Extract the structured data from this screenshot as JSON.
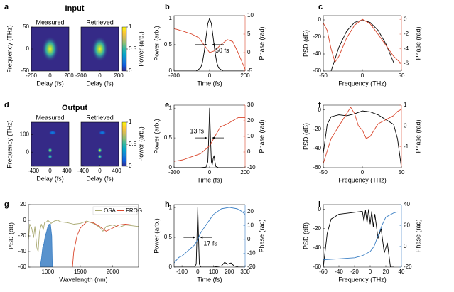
{
  "chart_data": [
    {
      "type": "heatmap",
      "panel": "a",
      "title": "Input",
      "subplots": [
        {
          "title": "Measured"
        },
        {
          "title": "Retrieved"
        }
      ],
      "xlabel": "Delay (fs)",
      "ylabel": "Frequency (THz)",
      "xlim": [
        -200,
        200
      ],
      "xticks": [
        -200,
        0,
        200
      ],
      "ylim": [
        -50,
        50
      ],
      "yticks": [
        -50,
        0,
        50
      ],
      "peaks": {
        "x": [
          0
        ],
        "y": [
          0
        ],
        "z": [
          1
        ],
        "sx": [
          55
        ],
        "sy": [
          18
        ]
      },
      "colorbar": {
        "label": "Power (arb.)",
        "lim": [
          0,
          1
        ],
        "ticks": [
          0,
          0.5,
          1
        ]
      },
      "colormap": [
        "#352a87",
        "#0f5cdd",
        "#1481d6",
        "#06a4ca",
        "#2eb7a4",
        "#87bf77",
        "#d1bb59",
        "#fec832",
        "#f9fb0e"
      ]
    },
    {
      "type": "line",
      "panel": "b",
      "xlabel": "Time (fs)",
      "ylabel": "Power (arb.)",
      "y2label": "Phase (rad)",
      "xlim": [
        -200,
        200
      ],
      "xticks": [
        -200,
        0,
        200
      ],
      "ylim": [
        0,
        1.05
      ],
      "yticks": [
        0,
        0.5,
        1
      ],
      "y2lim": [
        -5,
        10
      ],
      "y2ticks": [
        -5,
        0,
        5,
        10
      ],
      "annotation": "50 fs",
      "series": [
        {
          "color": "#000000",
          "x": [
            -200,
            -100,
            -75,
            -50,
            -40,
            -30,
            -20,
            -10,
            0,
            10,
            20,
            30,
            40,
            50,
            75,
            100,
            200
          ],
          "values": [
            0,
            0,
            0.002,
            0.06,
            0.17,
            0.37,
            0.64,
            0.9,
            1,
            0.9,
            0.64,
            0.37,
            0.17,
            0.06,
            0.002,
            0,
            0
          ]
        },
        {
          "color": "#d9452b",
          "axis": "y2",
          "x": [
            -200,
            -150,
            -100,
            -60,
            -30,
            0,
            30,
            60,
            100,
            130,
            160,
            200
          ],
          "values": [
            6.5,
            5.8,
            5,
            4,
            2,
            0,
            0.5,
            2,
            3.5,
            3,
            0,
            -4.5
          ]
        }
      ]
    },
    {
      "type": "line",
      "panel": "c",
      "xlabel": "Frequency (THz)",
      "ylabel": "PSD (dB)",
      "y2label": "Phase (rad)",
      "xlim": [
        -50,
        50
      ],
      "xticks": [
        -50,
        0,
        50
      ],
      "ylim": [
        -60,
        5
      ],
      "yticks": [
        -60,
        -40,
        -20,
        0
      ],
      "y2lim": [
        -7,
        0.5
      ],
      "y2ticks": [
        -6,
        -4,
        -2,
        0
      ],
      "series": [
        {
          "color": "#000000",
          "x": [
            -40,
            -30,
            -20,
            -10,
            0,
            10,
            20,
            30,
            40
          ],
          "values": [
            -60,
            -32,
            -13,
            -3,
            0,
            -3,
            -12,
            -28,
            -50
          ]
        },
        {
          "color": "#d9452b",
          "axis": "y2",
          "x": [
            -50,
            -45,
            -40,
            -35,
            -30,
            -20,
            -10,
            0,
            10,
            20,
            30,
            40,
            45,
            50
          ],
          "values": [
            -0.5,
            -1.5,
            -4,
            -5.8,
            -5,
            -2.5,
            -0.8,
            0,
            -0.6,
            -2,
            -3.5,
            -5,
            -5.5,
            -6
          ]
        }
      ]
    },
    {
      "type": "heatmap",
      "panel": "d",
      "title": "Output",
      "subplots": [
        {
          "title": "Measured"
        },
        {
          "title": "Retrieved"
        }
      ],
      "xlabel": "Delay (fs)",
      "ylabel": "Frequency (THz)",
      "xlim": [
        -450,
        450
      ],
      "xticks": [
        -400,
        0,
        400
      ],
      "ylim": [
        -80,
        170
      ],
      "yticks": [
        0,
        100
      ],
      "peaks": {
        "x": [
          0,
          0,
          60
        ],
        "y": [
          10,
          -25,
          110
        ],
        "z": [
          1,
          0.8,
          0.3
        ],
        "sx": [
          35,
          35,
          60
        ],
        "sy": [
          9,
          8,
          8
        ]
      },
      "colorbar": {
        "label": "Power (arb.)",
        "lim": [
          0,
          1
        ],
        "ticks": [
          0,
          0.5,
          1
        ]
      },
      "colormap": [
        "#352a87",
        "#0f5cdd",
        "#1481d6",
        "#06a4ca",
        "#2eb7a4",
        "#87bf77",
        "#d1bb59",
        "#fec832",
        "#f9fb0e"
      ]
    },
    {
      "type": "line",
      "panel": "e",
      "xlabel": "Time (fs)",
      "ylabel": "Power (arb.)",
      "y2label": "Phase (rad)",
      "xlim": [
        -200,
        200
      ],
      "xticks": [
        -200,
        0,
        200
      ],
      "ylim": [
        0,
        1.05
      ],
      "yticks": [
        0,
        0.5,
        1
      ],
      "y2lim": [
        -10,
        30
      ],
      "y2ticks": [
        -10,
        0,
        10,
        20,
        30
      ],
      "annotation": "13 fs",
      "series": [
        {
          "color": "#000000",
          "x": [
            -200,
            -50,
            -20,
            -10,
            -5,
            0,
            5,
            10,
            15,
            20,
            25,
            30,
            35,
            50,
            200
          ],
          "values": [
            0,
            0,
            0.01,
            0.1,
            0.5,
            1,
            0.5,
            0.1,
            0.05,
            0.15,
            0.2,
            0.1,
            0.02,
            0,
            0
          ]
        },
        {
          "color": "#d9452b",
          "axis": "y2",
          "x": [
            -200,
            -150,
            -100,
            -50,
            -20,
            0,
            20,
            40,
            60,
            100,
            130,
            160,
            200
          ],
          "values": [
            -6,
            -5,
            -3,
            -1,
            2,
            4,
            8,
            12,
            16,
            18,
            20,
            22,
            22
          ]
        }
      ]
    },
    {
      "type": "line",
      "panel": "f",
      "xlabel": "Frequency (THz)",
      "ylabel": "PSD (dB)",
      "y2label": "Phase (rad)",
      "xlim": [
        -50,
        50
      ],
      "xticks": [
        -50,
        0,
        50
      ],
      "ylim": [
        -60,
        5
      ],
      "yticks": [
        -60,
        -40,
        -20,
        0
      ],
      "y2lim": [
        -2,
        1
      ],
      "y2ticks": [
        -1,
        0,
        1
      ],
      "series": [
        {
          "color": "#000000",
          "x": [
            -50,
            -45,
            -40,
            -30,
            -20,
            -10,
            0,
            10,
            20,
            30,
            40,
            45,
            50
          ],
          "values": [
            -45,
            -15,
            -7,
            -5,
            -6,
            -4,
            -1,
            -2,
            -5,
            -10,
            -15,
            -30,
            -60
          ]
        },
        {
          "color": "#d9452b",
          "axis": "y2",
          "x": [
            -50,
            -45,
            -40,
            -30,
            -20,
            -15,
            -10,
            -5,
            0,
            5,
            10,
            20,
            30,
            40,
            45,
            50
          ],
          "values": [
            -1.8,
            -1.2,
            -0.6,
            0,
            0.6,
            0.9,
            0.6,
            0,
            -0.2,
            -0.6,
            -0.5,
            0.1,
            0.3,
            0.5,
            0.7,
            0.8
          ]
        }
      ]
    },
    {
      "type": "line",
      "panel": "g",
      "xlabel": "Wavelength (nm)",
      "ylabel": "PSD (dB)",
      "legend": "upper right",
      "xlim": [
        700,
        2400
      ],
      "xticks": [
        1000,
        1500,
        2000
      ],
      "ylim": [
        -60,
        20
      ],
      "yticks": [
        -60,
        -40,
        -20,
        0,
        20
      ],
      "series": [
        {
          "name": "OSA",
          "color": "#a8a870",
          "x": [
            700,
            720,
            750,
            780,
            800,
            830,
            850,
            870,
            900,
            930,
            950,
            980,
            1000,
            1050,
            1100,
            1150,
            1200,
            1300,
            1400,
            1500,
            1600,
            1700,
            1800,
            1850,
            1900,
            2000,
            2100,
            2200,
            2300,
            2400
          ],
          "values": [
            -25,
            -5,
            -10,
            -22,
            -8,
            -35,
            -40,
            -15,
            -5,
            -12,
            -3,
            -2,
            0,
            -4,
            -1,
            0,
            -2,
            -3,
            -5,
            -4,
            -1,
            -4,
            -9,
            -14,
            -8,
            -6,
            -9,
            -6,
            -7,
            -8
          ]
        },
        {
          "name": "FROG",
          "color": "#d9452b",
          "x": [
            1380,
            1400,
            1450,
            1500,
            1600,
            1700,
            1800,
            1900,
            2000,
            2100,
            2200,
            2300,
            2400
          ],
          "values": [
            -60,
            -40,
            -20,
            -10,
            -2,
            -3,
            -8,
            -14,
            -10,
            -6,
            -5,
            -6,
            -6
          ]
        },
        {
          "color": "#3b7fc4",
          "fill": true,
          "x": [
            880,
            900,
            920,
            940,
            960,
            980,
            1000,
            1020,
            1040,
            1060,
            1070
          ],
          "values": [
            -60,
            -50,
            -35,
            -30,
            -20,
            -15,
            -8,
            -5,
            -5,
            -20,
            -60
          ]
        }
      ]
    },
    {
      "type": "line",
      "panel": "h",
      "xlabel": "Time (fs)",
      "ylabel": "Power (arb.)",
      "y2label": "Phase (rad)",
      "xlim": [
        -150,
        300
      ],
      "xticks": [
        -100,
        0,
        100,
        200,
        300
      ],
      "ylim": [
        0,
        1.05
      ],
      "yticks": [
        0,
        0.5,
        1
      ],
      "y2lim": [
        -20,
        25
      ],
      "y2ticks": [
        -20,
        -10,
        0,
        10,
        20
      ],
      "annotation": "17 fs",
      "series": [
        {
          "color": "#000000",
          "x": [
            -150,
            -20,
            -10,
            -5,
            0,
            5,
            10,
            20,
            50,
            100,
            150,
            170,
            190,
            210,
            230,
            260,
            300
          ],
          "values": [
            0,
            0,
            0.05,
            0.5,
            1,
            0.5,
            0.05,
            0,
            0,
            0,
            0.02,
            0.08,
            0.05,
            0.07,
            0.02,
            0,
            0
          ]
        },
        {
          "color": "#3b7fc4",
          "axis": "y2",
          "x": [
            -150,
            -120,
            -100,
            -80,
            -60,
            -40,
            -20,
            0,
            20,
            50,
            100,
            150,
            200,
            250,
            280,
            300
          ],
          "values": [
            -17,
            -13,
            -12,
            -10,
            -8,
            -6,
            -4,
            0,
            5,
            10,
            18,
            22,
            23,
            22,
            20,
            18
          ]
        }
      ]
    },
    {
      "type": "line",
      "panel": "i",
      "xlabel": "Frequency (THz)",
      "ylabel": "PSD (dB)",
      "y2label": "Phase (rad)",
      "xlim": [
        -60,
        40
      ],
      "xticks": [
        -60,
        -40,
        -20,
        0,
        20,
        40
      ],
      "ylim": [
        -60,
        5
      ],
      "yticks": [
        -60,
        -40,
        -20,
        0
      ],
      "y2lim": [
        -20,
        40
      ],
      "y2ticks": [
        -20,
        0,
        20,
        40
      ],
      "series": [
        {
          "color": "#000000",
          "x": [
            -60,
            -55,
            -50,
            -40,
            -30,
            -20,
            -10,
            -8,
            -6,
            -4,
            -2,
            0,
            2,
            4,
            6,
            10,
            14,
            18,
            22,
            26,
            30
          ],
          "values": [
            -60,
            -25,
            -10,
            -5,
            -4,
            -3,
            -2,
            -12,
            -1,
            -14,
            0,
            -15,
            -2,
            -18,
            -5,
            -30,
            -20,
            -45,
            -35,
            -60,
            -60
          ]
        },
        {
          "color": "#3b7fc4",
          "axis": "y2",
          "x": [
            -60,
            -40,
            -20,
            -10,
            0,
            5,
            10,
            15,
            20,
            25,
            30,
            35
          ],
          "values": [
            -13,
            -12,
            -11,
            -9,
            -5,
            0,
            10,
            20,
            28,
            30,
            32,
            33
          ]
        }
      ]
    }
  ]
}
